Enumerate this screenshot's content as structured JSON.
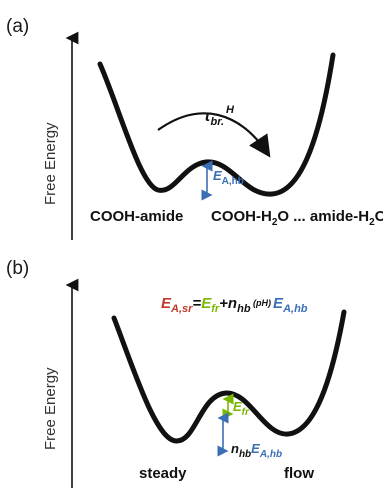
{
  "panel_a": {
    "label": "(a)",
    "ylabel": "Free Energy",
    "tau": {
      "symbol": "τ",
      "sub": "br.",
      "sup": "H"
    },
    "barrier": {
      "E": "E",
      "sub": "A,hb"
    },
    "left_state": "COOH-amide",
    "right_state_pre": "COOH-H",
    "right_state_sub": "2",
    "right_state_mid": "O ... amide-H",
    "right_state_sub2": "2",
    "right_state_post": "O"
  },
  "panel_b": {
    "label": "(b)",
    "ylabel": "Free Energy",
    "equation": {
      "lhs_E": "E",
      "lhs_sub": "A,sr",
      "eq": "=",
      "efr_E": "E",
      "efr_sub": "fr",
      "plus": "+",
      "n": "n",
      "n_sub": "hb",
      "ph": " (pH)",
      "ehb_E": "E",
      "ehb_sub": "A,hb"
    },
    "efr_label": {
      "E": "E",
      "sub": "fr"
    },
    "nhb_label": {
      "n": "n",
      "n_sub": "hb",
      "E": "E",
      "E_sub": "A,hb"
    },
    "left_state": "steady",
    "right_state": "flow"
  },
  "colors": {
    "red": "#c0392b",
    "green": "#7ab800",
    "blue": "#3a6fb5",
    "black": "#111111"
  }
}
